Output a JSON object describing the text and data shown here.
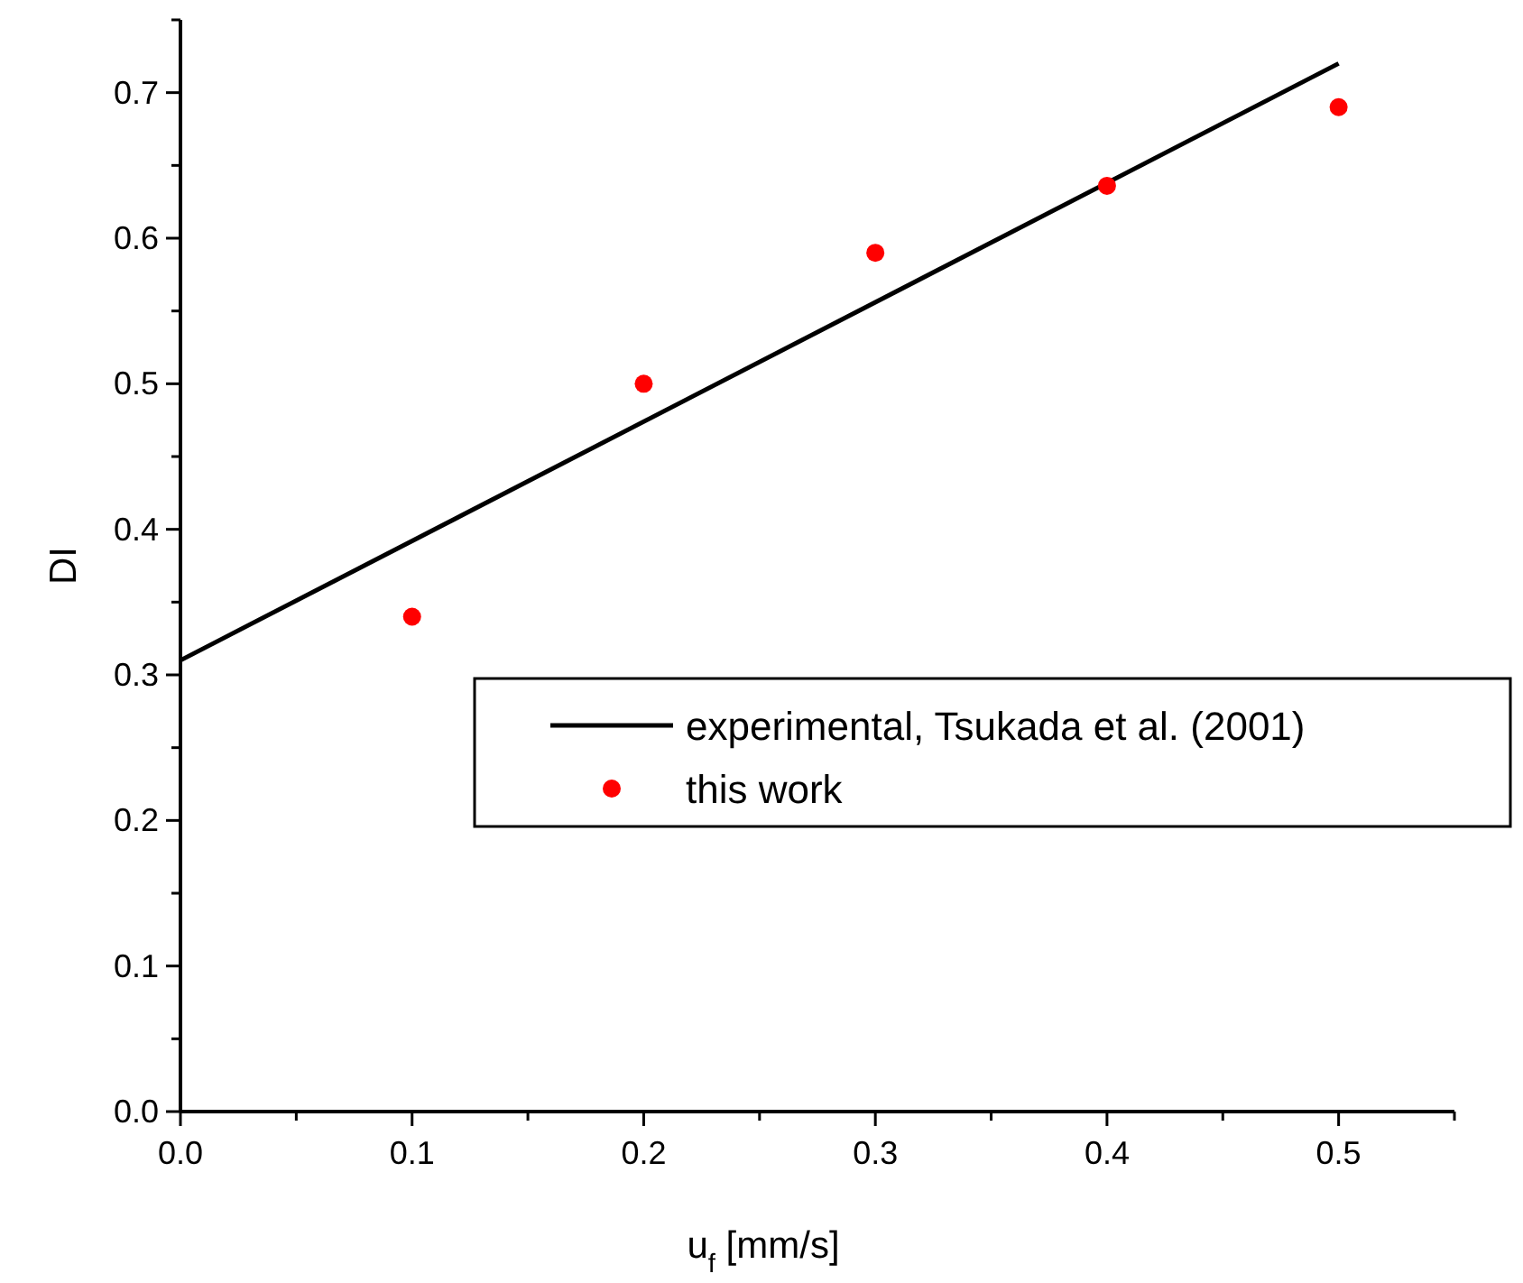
{
  "chart_data": {
    "type": "scatter",
    "xlabel": "u$_{f}$ [mm/s]",
    "ylabel": "DI",
    "xlim": [
      0,
      0.55
    ],
    "ylim": [
      0,
      0.75
    ],
    "xticks": [
      {
        "value": 0,
        "label": "0.0"
      },
      {
        "value": 0.05,
        "label": null
      },
      0.1,
      {
        "value": 0.15,
        "label": null
      },
      0.2,
      {
        "value": 0.25,
        "label": null
      },
      0.3,
      {
        "value": 0.35,
        "label": null
      },
      0.4,
      {
        "value": 0.45,
        "label": null
      },
      0.5,
      {
        "value": 0.55,
        "label": null
      }
    ],
    "yticks": [
      {
        "value": 0,
        "label": "0.0"
      },
      {
        "value": 0.05,
        "label": null
      },
      0.1,
      {
        "value": 0.15,
        "label": null
      },
      0.2,
      {
        "value": 0.25,
        "label": null
      },
      0.3,
      {
        "value": 0.35,
        "label": null
      },
      0.4,
      {
        "value": 0.45,
        "label": null
      },
      0.5,
      {
        "value": 0.55,
        "label": null
      },
      0.6,
      {
        "value": 0.65,
        "label": null
      },
      0.7,
      {
        "value": 0.75,
        "label": null
      }
    ],
    "legend": "right",
    "grid": false,
    "series": [
      {
        "name": "experimental, Tsukada et al. (2001)",
        "type": "line",
        "color": "#000000",
        "x": [
          0,
          0.5
        ],
        "values": [
          0.31,
          0.72
        ],
        "line_style": "solid"
      },
      {
        "name": "this work",
        "color": "#ff0000",
        "x": [
          0.1,
          0.2,
          0.3,
          0.4,
          0.5
        ],
        "values": [
          0.34,
          0.5,
          0.59,
          0.636,
          0.69
        ],
        "marker": "circle"
      }
    ]
  }
}
